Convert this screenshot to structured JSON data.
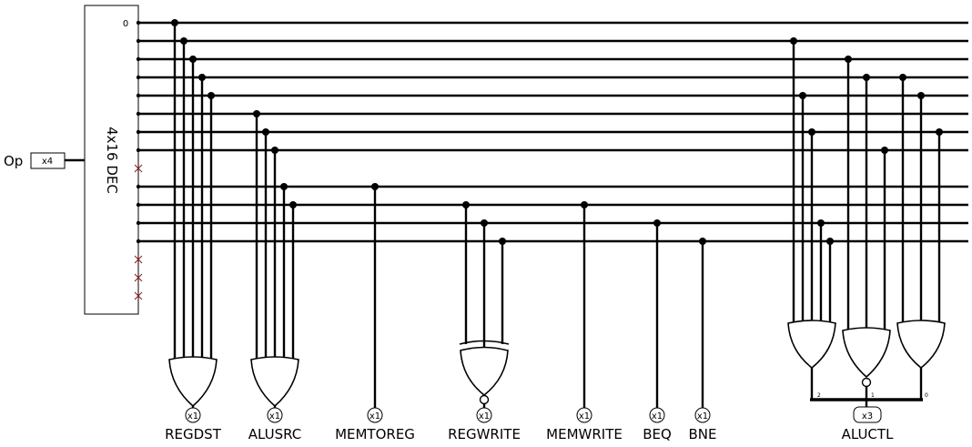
{
  "input": {
    "label": "Op",
    "width_label": "x4"
  },
  "decoder": {
    "label": "4x16 DEC",
    "first_output_label": "0"
  },
  "outputs": [
    {
      "label": "REGDST",
      "width_label": "x1"
    },
    {
      "label": "ALUSRC",
      "width_label": "x1"
    },
    {
      "label": "MEMTOREG",
      "width_label": "x1"
    },
    {
      "label": "REGWRITE",
      "width_label": "x1"
    },
    {
      "label": "MEMWRITE",
      "width_label": "x1"
    },
    {
      "label": "BEQ",
      "width_label": "x1"
    },
    {
      "label": "BNE",
      "width_label": "x1"
    },
    {
      "label": "ALUCTL",
      "width_label": "x3"
    }
  ],
  "splitter_bits": [
    "2",
    "1",
    "0"
  ]
}
